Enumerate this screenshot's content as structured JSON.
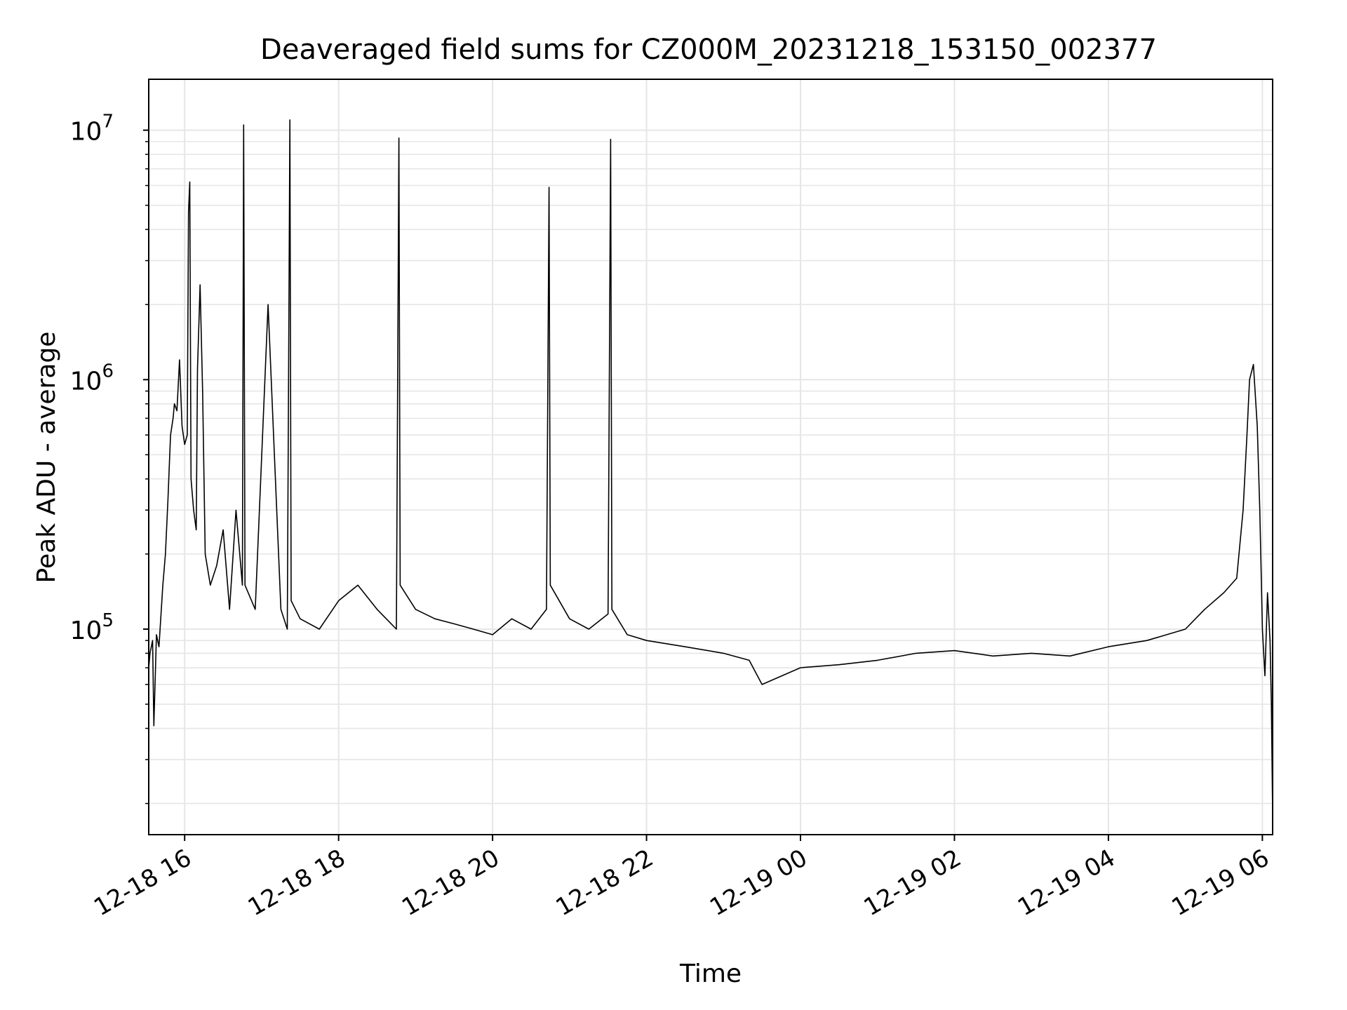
{
  "chart_data": {
    "type": "line",
    "title": "Deaveraged field sums for CZ000M_20231218_153150_002377",
    "xlabel": "Time",
    "ylabel": "Peak ADU - average",
    "x_axis": {
      "kind": "datetime",
      "range": [
        "2023-12-18T15:32",
        "2023-12-19T06:08"
      ],
      "ticks": [
        {
          "value": "2023-12-18T16:00",
          "label": "12-18 16"
        },
        {
          "value": "2023-12-18T18:00",
          "label": "12-18 18"
        },
        {
          "value": "2023-12-18T20:00",
          "label": "12-18 20"
        },
        {
          "value": "2023-12-18T22:00",
          "label": "12-18 22"
        },
        {
          "value": "2023-12-19T00:00",
          "label": "12-19 00"
        },
        {
          "value": "2023-12-19T02:00",
          "label": "12-19 02"
        },
        {
          "value": "2023-12-19T04:00",
          "label": "12-19 04"
        },
        {
          "value": "2023-12-19T06:00",
          "label": "12-19 06"
        }
      ]
    },
    "y_axis": {
      "scale": "log",
      "range": [
        15000,
        16000000
      ],
      "ticks": [
        {
          "value": 100000,
          "base": "10",
          "exp": "5"
        },
        {
          "value": 1000000,
          "base": "10",
          "exp": "6"
        },
        {
          "value": 10000000,
          "base": "10",
          "exp": "7"
        }
      ]
    },
    "grid": true,
    "line_color": "#000000",
    "series": [
      {
        "x": [
          "2023-12-18T15:32",
          "2023-12-18T15:33",
          "2023-12-18T15:35",
          "2023-12-18T15:36",
          "2023-12-18T15:38",
          "2023-12-18T15:40",
          "2023-12-18T15:43",
          "2023-12-18T15:45",
          "2023-12-18T15:47",
          "2023-12-18T15:48",
          "2023-12-18T15:49",
          "2023-12-18T15:51",
          "2023-12-18T15:52",
          "2023-12-18T15:54",
          "2023-12-18T15:56",
          "2023-12-18T15:58",
          "2023-12-18T16:00",
          "2023-12-18T16:02",
          "2023-12-18T16:03",
          "2023-12-18T16:04",
          "2023-12-18T16:05",
          "2023-12-18T16:07",
          "2023-12-18T16:09",
          "2023-12-18T16:10",
          "2023-12-18T16:12",
          "2023-12-18T16:14",
          "2023-12-18T16:16",
          "2023-12-18T16:20",
          "2023-12-18T16:25",
          "2023-12-18T16:30",
          "2023-12-18T16:35",
          "2023-12-18T16:40",
          "2023-12-18T16:45",
          "2023-12-18T16:46",
          "2023-12-18T16:47",
          "2023-12-18T16:55",
          "2023-12-18T17:05",
          "2023-12-18T17:15",
          "2023-12-18T17:20",
          "2023-12-18T17:22",
          "2023-12-18T17:23",
          "2023-12-18T17:30",
          "2023-12-18T17:45",
          "2023-12-18T18:00",
          "2023-12-18T18:15",
          "2023-12-18T18:30",
          "2023-12-18T18:45",
          "2023-12-18T18:47",
          "2023-12-18T18:48",
          "2023-12-18T19:00",
          "2023-12-18T19:15",
          "2023-12-18T19:30",
          "2023-12-18T19:45",
          "2023-12-18T20:00",
          "2023-12-18T20:15",
          "2023-12-18T20:30",
          "2023-12-18T20:42",
          "2023-12-18T20:44",
          "2023-12-18T20:45",
          "2023-12-18T21:00",
          "2023-12-18T21:15",
          "2023-12-18T21:30",
          "2023-12-18T21:32",
          "2023-12-18T21:33",
          "2023-12-18T21:45",
          "2023-12-18T22:00",
          "2023-12-18T22:30",
          "2023-12-18T23:00",
          "2023-12-18T23:20",
          "2023-12-18T23:30",
          "2023-12-19T00:00",
          "2023-12-19T00:30",
          "2023-12-19T01:00",
          "2023-12-19T01:30",
          "2023-12-19T02:00",
          "2023-12-19T02:30",
          "2023-12-19T03:00",
          "2023-12-19T03:30",
          "2023-12-19T04:00",
          "2023-12-19T04:30",
          "2023-12-19T05:00",
          "2023-12-19T05:15",
          "2023-12-19T05:30",
          "2023-12-19T05:40",
          "2023-12-19T05:45",
          "2023-12-19T05:48",
          "2023-12-19T05:50",
          "2023-12-19T05:53",
          "2023-12-19T05:56",
          "2023-12-19T05:58",
          "2023-12-19T06:00",
          "2023-12-19T06:02",
          "2023-12-19T06:04",
          "2023-12-19T06:06",
          "2023-12-19T06:07",
          "2023-12-19T06:08"
        ],
        "y": [
          70000,
          80000,
          90000,
          41000,
          95000,
          85000,
          150000,
          200000,
          330000,
          450000,
          600000,
          700000,
          800000,
          750000,
          1200000,
          650000,
          550000,
          600000,
          4700000,
          6200000,
          400000,
          300000,
          250000,
          1100000,
          2400000,
          900000,
          200000,
          150000,
          180000,
          250000,
          120000,
          300000,
          150000,
          10500000,
          150000,
          120000,
          2000000,
          120000,
          100000,
          11000000,
          130000,
          110000,
          100000,
          130000,
          150000,
          120000,
          100000,
          9300000,
          150000,
          120000,
          110000,
          105000,
          100000,
          95000,
          110000,
          100000,
          120000,
          5900000,
          150000,
          110000,
          100000,
          115000,
          9200000,
          120000,
          95000,
          90000,
          85000,
          80000,
          75000,
          60000,
          70000,
          72000,
          75000,
          80000,
          82000,
          78000,
          80000,
          78000,
          85000,
          90000,
          100000,
          120000,
          140000,
          160000,
          300000,
          600000,
          1000000,
          1150000,
          650000,
          300000,
          100000,
          65000,
          140000,
          90000,
          50000,
          18000
        ]
      }
    ]
  }
}
